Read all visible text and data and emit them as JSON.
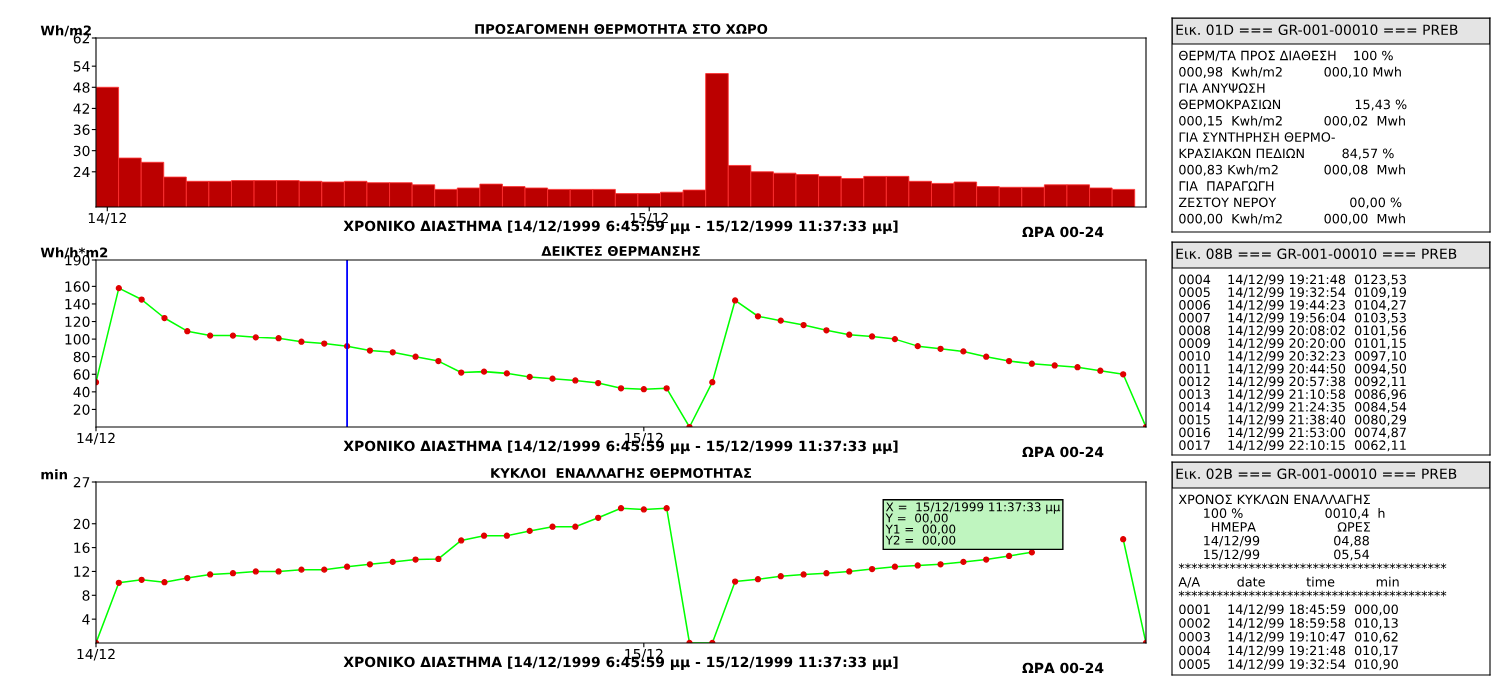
{
  "chart_data": [
    {
      "type": "bar",
      "title": "ΠΡΟΣΑΓΟΜΕΝΗ ΘΕΡΜΟΤΗΤΑ ΣΤΟ ΧΩΡΟ",
      "ylabel": "Wh/m2",
      "xlabel": "ΧΡΟΝΙΚΟ ΔΙΑΣΤΗΜΑ [14/12/1999 6:45:59 μμ - 15/12/1999 11:37:33 μμ]",
      "annotations": [
        "ΩΡΑ 00-24"
      ],
      "categories": [
        "14/12",
        null,
        null,
        null,
        null,
        null,
        null,
        null,
        null,
        null,
        null,
        null,
        null,
        null,
        null,
        null,
        null,
        null,
        null,
        null,
        null,
        null,
        null,
        null,
        "15/12",
        null,
        null,
        null,
        null,
        null,
        null,
        null,
        null,
        null,
        null,
        null,
        null,
        null,
        null,
        null,
        null,
        null,
        null,
        null,
        null,
        null
      ],
      "values": [
        48,
        27.9,
        26.7,
        22.5,
        21.3,
        21.3,
        21.5,
        21.5,
        21.5,
        21.3,
        21.1,
        21.3,
        20.9,
        20.9,
        20.3,
        19,
        19.4,
        20.5,
        19.8,
        19.4,
        19,
        19,
        19,
        17.8,
        17.8,
        18.2,
        18.8,
        51.9,
        25.8,
        24,
        23.6,
        23.2,
        22.7,
        22.1,
        22.7,
        22.7,
        21.3,
        20.7,
        21.1,
        19.8,
        19.6,
        19.6,
        20.3,
        20.3,
        19.4,
        19
      ],
      "color": "#bb0000",
      "ylim": [
        14,
        62
      ],
      "yticks": [
        24,
        30,
        36,
        42,
        48,
        54,
        62
      ]
    },
    {
      "type": "other",
      "title": "Εικ. 01D === GR-001-00010 === PREB",
      "annotations": [
        "ΘΕΡΜ/ΤΑ ΠΡΟΣ ΔΙΑΘΕΣΗ    100 %",
        "000,98  Kwh/m2          000,10 Mwh",
        "ΓΙΑ ΑΝΥΨΩΣΗ",
        "ΘΕΡΜΟΚΡΑΣΙΩΝ                  15,43 %",
        "000,15  Kwh/m2          000,02  Mwh",
        "ΓΙΑ ΣΥΝΤΗΡΗΣΗ ΘΕΡΜΟ-",
        "ΚΡΑΣΙΑΚΩΝ ΠΕΔΙΩΝ         84,57 %",
        "000,83 Kwh/m2           000,08  Mwh",
        "ΓΙΑ  ΠΑΡΑΓΩΓΗ",
        "ΖΕΣΤΟΥ ΝΕΡΟΥ                  00,00 %",
        "000,00  Kwh/m2          000,00  Mwh"
      ]
    },
    {
      "type": "line",
      "title": "ΔΕΙΚΤΕΣ ΘΕΡΜΑΝΣΗΣ",
      "ylabel": "Wh/h*m2",
      "xlabel": "ΧΡΟΝΙΚΟ ΔΙΑΣΤΗΜΑ [14/12/1999 6:45:59 μμ - 15/12/1999 11:37:33 μμ]",
      "annotations": [
        "ΩΡΑ 00-24"
      ],
      "categories": [
        "14/12",
        null,
        null,
        null,
        null,
        null,
        null,
        null,
        null,
        null,
        null,
        null,
        null,
        null,
        null,
        null,
        null,
        null,
        null,
        null,
        null,
        null,
        null,
        null,
        "15/12",
        null,
        null,
        null,
        null,
        null,
        null,
        null,
        null,
        null,
        null,
        null,
        null,
        null,
        null,
        null,
        null,
        null,
        null,
        null,
        null,
        null,
        null
      ],
      "series": [
        {
          "color": "#00ff00",
          "values": [
            51,
            158,
            145,
            124,
            109,
            104,
            104,
            102,
            101,
            97,
            95,
            92,
            87,
            85,
            80,
            75,
            62,
            63,
            61,
            57,
            55,
            53,
            50,
            44,
            43,
            44,
            0,
            51,
            144,
            126,
            121,
            116,
            110,
            105,
            103,
            100,
            92,
            89,
            86,
            80,
            75,
            72,
            70,
            68,
            64,
            60,
            0
          ]
        }
      ],
      "marker": "circle",
      "line_style": "solid",
      "ylim": [
        0,
        190
      ],
      "yticks": [
        20,
        40,
        60,
        80,
        100,
        120,
        140,
        160,
        190
      ]
    },
    {
      "type": "other",
      "title": "Εικ. 08B === GR-001-00010 === PREB",
      "annotations": [
        "0004    14/12/99 19:21:48  0123,53",
        "0005    14/12/99 19:32:54  0109,19",
        "0006    14/12/99 19:44:23  0104,27",
        "0007    14/12/99 19:56:04  0103,53",
        "0008    14/12/99 20:08:02  0101,56",
        "0009    14/12/99 20:20:00  0101,15",
        "0010    14/12/99 20:32:23  0097,10",
        "0011    14/12/99 20:44:50  0094,50",
        "0012    14/12/99 20:57:38  0092,11",
        "0013    14/12/99 21:10:58  0086,96",
        "0014    14/12/99 21:24:35  0084,54",
        "0015    14/12/99 21:38:40  0080,29",
        "0016    14/12/99 21:53:00  0074,87",
        "0017    14/12/99 22:10:15  0062,11"
      ]
    },
    {
      "type": "line",
      "title": "ΚΥΚΛΟΙ  ΕΝΑΛΛΑΓΗΣ ΘΕΡΜΟΤΗΤΑΣ",
      "ylabel": "min",
      "xlabel": "ΧΡΟΝΙΚΟ ΔΙΑΣΤΗΜΑ [14/12/1999 6:45:59 μμ - 15/12/1999 11:37:33 μμ]",
      "annotations": [
        "ΩΡΑ 00-24",
        "X =  15/12/1999 11:37:33 μμ",
        "Y =  00,00",
        "Y1 =  00,00",
        "Y2 =  00,00"
      ],
      "categories": [
        "14/12",
        null,
        null,
        null,
        null,
        null,
        null,
        null,
        null,
        null,
        null,
        null,
        null,
        null,
        null,
        null,
        null,
        null,
        null,
        null,
        null,
        null,
        null,
        null,
        "15/12",
        null,
        null,
        null,
        null,
        null,
        null,
        null,
        null,
        null,
        null,
        null,
        null,
        null,
        null,
        null,
        null,
        null,
        null,
        null,
        null,
        null,
        null
      ],
      "series": [
        {
          "color": "#00ff00",
          "values": [
            0,
            10.1,
            10.6,
            10.2,
            10.9,
            11.5,
            11.7,
            12,
            12,
            12.3,
            12.3,
            12.8,
            13.2,
            13.6,
            14,
            14.1,
            17.2,
            18,
            18,
            18.8,
            19.5,
            19.5,
            21,
            22.6,
            22.4,
            22.6,
            0,
            0,
            10.3,
            10.7,
            11.2,
            11.5,
            11.7,
            12,
            12.4,
            12.8,
            13.0,
            13.2,
            13.6,
            14,
            14.6,
            15.2,
            null,
            null,
            null,
            17.4,
            0
          ]
        }
      ],
      "marker": "circle",
      "line_style": "solid",
      "ylim": [
        0,
        27
      ],
      "yticks": [
        4,
        8,
        12,
        16,
        20,
        27
      ]
    },
    {
      "type": "other",
      "title": "Εικ. 02B === GR-001-00010 === PREB",
      "annotations": [
        "ΧΡΟΝΟΣ ΚΥΚΛΩΝ ΕΝΑΛΛΑΓΗΣ",
        "      100 %                    0010,4  h",
        "        ΗΜΕΡΑ                    ΩΡΕΣ",
        "      14/12/99                  04,88",
        "      15/12/99                  05,54",
        "******************************************",
        "Α/Α         date          time          min",
        "******************************************",
        "0001    14/12/99 18:45:59  000,00",
        "0002    14/12/99 18:59:58  010,13",
        "0003    14/12/99 19:10:47  010,62",
        "0004    14/12/99 19:21:48  010,17",
        "0005    14/12/99 19:32:54  010,90"
      ]
    }
  ]
}
